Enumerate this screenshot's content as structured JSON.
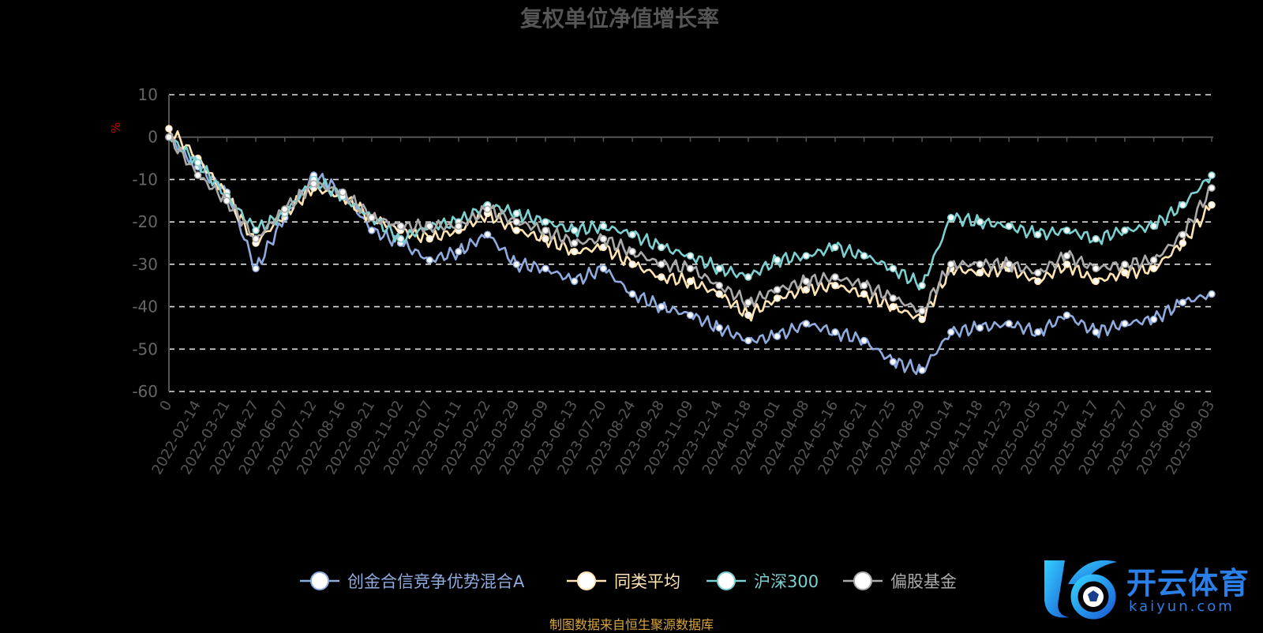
{
  "chart_data": {
    "type": "line",
    "title": "复权单位净值增长率",
    "ylabel": "%",
    "ylim": [
      -60,
      10
    ],
    "yticks": [
      10,
      0,
      -10,
      -20,
      -30,
      -40,
      -50,
      -60
    ],
    "grid": true,
    "legend_position": "bottom",
    "x": [
      "0",
      "2022-02-14",
      "2022-03-21",
      "2022-04-27",
      "2022-06-07",
      "2022-07-12",
      "2022-08-16",
      "2022-09-21",
      "2022-11-02",
      "2022-12-07",
      "2023-01-11",
      "2023-02-22",
      "2023-03-29",
      "2023-05-09",
      "2023-06-13",
      "2023-07-20",
      "2023-08-24",
      "2023-09-28",
      "2023-11-09",
      "2023-12-14",
      "2024-01-18",
      "2024-03-01",
      "2024-04-08",
      "2024-05-16",
      "2024-06-21",
      "2024-07-25",
      "2024-08-29",
      "2024-10-14",
      "2024-11-18",
      "2024-12-23",
      "2025-02-05",
      "2025-03-12",
      "2025-04-17",
      "2025-05-27",
      "2025-07-02",
      "2025-08-06",
      "2025-09-03"
    ],
    "series": [
      {
        "name": "创金合信竞争优势混合A",
        "color": "#8faadc",
        "values": [
          0,
          -7,
          -13,
          -31,
          -19,
          -9,
          -13,
          -22,
          -25,
          -29,
          -27,
          -23,
          -30,
          -31,
          -34,
          -31,
          -37,
          -40,
          -42,
          -45,
          -48,
          -47,
          -44,
          -46,
          -48,
          -53,
          -55,
          -46,
          -45,
          -44,
          -46,
          -42,
          -46,
          -44,
          -43,
          -39,
          -37
        ]
      },
      {
        "name": "同类平均",
        "color": "#ffe4b5",
        "values": [
          2,
          -5,
          -14,
          -25,
          -18,
          -12,
          -14,
          -19,
          -22,
          -24,
          -22,
          -18,
          -22,
          -24,
          -27,
          -26,
          -30,
          -33,
          -34,
          -37,
          -42,
          -38,
          -36,
          -35,
          -37,
          -40,
          -43,
          -31,
          -32,
          -31,
          -34,
          -30,
          -34,
          -32,
          -31,
          -25,
          -16
        ]
      },
      {
        "name": "沪深300",
        "color": "#7ecfcf",
        "values": [
          0,
          -6,
          -14,
          -22,
          -18,
          -10,
          -14,
          -19,
          -24,
          -21,
          -20,
          -16,
          -18,
          -20,
          -22,
          -21,
          -23,
          -26,
          -28,
          -31,
          -33,
          -29,
          -28,
          -26,
          -28,
          -31,
          -35,
          -19,
          -20,
          -21,
          -23,
          -22,
          -24,
          -22,
          -21,
          -16,
          -9
        ]
      },
      {
        "name": "偏股基金",
        "color": "#aaaaaa",
        "values": [
          0,
          -9,
          -15,
          -24,
          -17,
          -11,
          -13,
          -19,
          -21,
          -21,
          -21,
          -17,
          -20,
          -22,
          -25,
          -24,
          -27,
          -30,
          -31,
          -35,
          -39,
          -36,
          -34,
          -33,
          -35,
          -38,
          -41,
          -30,
          -30,
          -30,
          -32,
          -28,
          -31,
          -30,
          -29,
          -23,
          -12
        ]
      }
    ]
  },
  "footer_text": "制图数据来自恒生聚源数据库",
  "brand": {
    "name_zh": "开云体育",
    "domain": "kaiyun.com"
  }
}
